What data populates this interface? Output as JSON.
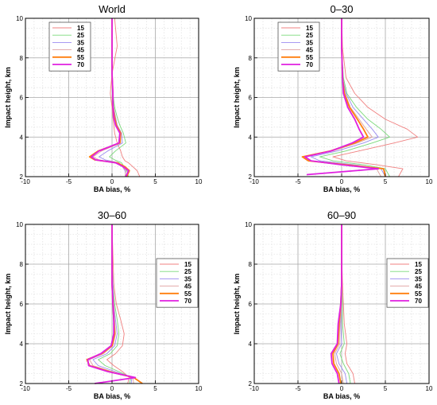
{
  "chart_data": [
    {
      "type": "line",
      "title": "World",
      "xlabel": "BA bias, %",
      "ylabel": "Impact height, km",
      "xlim": [
        -10,
        10
      ],
      "ylim": [
        2,
        10
      ],
      "xticks": [
        -10,
        -5,
        0,
        5,
        10
      ],
      "yticks": [
        2,
        4,
        6,
        8,
        10
      ],
      "grid": true,
      "legend_position": "top-left",
      "series": [
        {
          "name": "15",
          "color": "#f08080",
          "x": [
            3.2,
            2.9,
            2.4,
            1.9,
            1.5,
            1.2,
            1.0,
            0.6,
            0.3,
            0.2,
            0.1,
            0.0,
            -0.2,
            0.0,
            0.6,
            0.3
          ],
          "y": [
            2.0,
            2.3,
            2.5,
            2.7,
            2.8,
            3.0,
            3.3,
            3.7,
            4.2,
            4.6,
            5.0,
            5.5,
            6.2,
            7.2,
            8.6,
            10.0
          ]
        },
        {
          "name": "25",
          "color": "#7ad97a",
          "x": [
            1.9,
            1.7,
            1.4,
            1.1,
            0.3,
            -0.3,
            0.4,
            1.6,
            1.3,
            0.9,
            0.6,
            0.3,
            0.1,
            0.0,
            0.0,
            0.0
          ],
          "y": [
            2.0,
            2.3,
            2.5,
            2.7,
            2.85,
            3.0,
            3.3,
            3.7,
            4.2,
            4.6,
            5.0,
            5.5,
            6.2,
            7.2,
            8.6,
            10.0
          ]
        },
        {
          "name": "35",
          "color": "#9b8cf0",
          "x": [
            1.6,
            1.5,
            1.2,
            0.8,
            -0.8,
            -1.5,
            -0.5,
            1.2,
            1.1,
            0.6,
            0.4,
            0.2,
            0.1,
            0.0,
            0.0,
            0.0
          ],
          "y": [
            2.0,
            2.3,
            2.5,
            2.7,
            2.85,
            3.0,
            3.3,
            3.7,
            4.2,
            4.6,
            5.0,
            5.5,
            6.2,
            7.2,
            8.6,
            10.0
          ]
        },
        {
          "name": "45",
          "color": "#e0a0a0",
          "x": [
            1.5,
            1.6,
            1.2,
            0.7,
            -1.5,
            -2.2,
            -1.2,
            1.0,
            1.0,
            0.5,
            0.3,
            0.2,
            0.1,
            0.0,
            0.0,
            0.0
          ],
          "y": [
            2.0,
            2.3,
            2.5,
            2.7,
            2.85,
            3.0,
            3.3,
            3.7,
            4.2,
            4.6,
            5.0,
            5.5,
            6.2,
            7.2,
            8.6,
            10.0
          ]
        },
        {
          "name": "55",
          "color": "#ff7f0e",
          "x": [
            1.7,
            2.0,
            1.5,
            0.6,
            -2.0,
            -2.6,
            -1.6,
            0.9,
            1.0,
            0.5,
            0.3,
            0.1,
            0.1,
            0.0,
            0.0,
            0.0
          ],
          "y": [
            2.0,
            2.3,
            2.5,
            2.7,
            2.85,
            3.0,
            3.3,
            3.7,
            4.2,
            4.6,
            5.0,
            5.5,
            6.2,
            7.2,
            8.6,
            10.0
          ]
        },
        {
          "name": "70",
          "color": "#e020e0",
          "x": [
            1.6,
            1.9,
            1.3,
            0.4,
            -1.9,
            -2.4,
            -1.5,
            0.8,
            0.9,
            0.4,
            0.2,
            0.1,
            0.1,
            0.0,
            0.0,
            0.0
          ],
          "y": [
            2.0,
            2.3,
            2.5,
            2.7,
            2.85,
            3.0,
            3.3,
            3.7,
            4.2,
            4.6,
            5.0,
            5.5,
            6.2,
            7.2,
            8.6,
            10.0
          ]
        }
      ]
    },
    {
      "type": "line",
      "title": "0–30",
      "xlabel": "BA bias, %",
      "ylabel": "Impact height, km",
      "xlim": [
        -10,
        10
      ],
      "ylim": [
        2,
        10
      ],
      "xticks": [
        -10,
        -5,
        0,
        5,
        10
      ],
      "yticks": [
        2,
        4,
        6,
        8,
        10
      ],
      "grid": true,
      "legend_position": "top-left",
      "series": [
        {
          "name": "15",
          "color": "#f08080",
          "x": [
            6.5,
            7.0,
            4.0,
            0.5,
            -1.0,
            2.0,
            6.0,
            8.7,
            7.5,
            5.0,
            3.0,
            1.5,
            0.5,
            0.1,
            0.0
          ],
          "y": [
            2.0,
            2.4,
            2.6,
            2.8,
            3.0,
            3.3,
            3.7,
            4.0,
            4.4,
            4.9,
            5.5,
            6.2,
            7.0,
            8.5,
            10.0
          ]
        },
        {
          "name": "25",
          "color": "#7ad97a",
          "x": [
            5.5,
            5.0,
            2.5,
            -1.0,
            -2.5,
            0.5,
            3.5,
            5.5,
            4.5,
            3.0,
            1.7,
            0.6,
            0.2,
            0.0,
            0.0
          ],
          "y": [
            2.0,
            2.4,
            2.6,
            2.8,
            3.0,
            3.3,
            3.7,
            4.0,
            4.4,
            4.9,
            5.5,
            6.2,
            7.0,
            8.5,
            10.0
          ]
        },
        {
          "name": "35",
          "color": "#9b8cf0",
          "x": [
            5.0,
            4.5,
            1.5,
            -2.5,
            -3.5,
            -0.5,
            2.5,
            4.2,
            3.5,
            2.5,
            1.3,
            0.5,
            0.1,
            0.0,
            0.0
          ],
          "y": [
            2.0,
            2.4,
            2.6,
            2.8,
            3.0,
            3.3,
            3.7,
            4.0,
            4.4,
            4.9,
            5.5,
            6.2,
            7.0,
            8.5,
            10.0
          ]
        },
        {
          "name": "45",
          "color": "#e0a0a0",
          "x": [
            4.5,
            4.0,
            1.0,
            -3.5,
            -4.3,
            -1.0,
            1.8,
            3.5,
            2.8,
            2.0,
            1.0,
            0.4,
            0.1,
            0.0,
            0.0
          ],
          "y": [
            2.0,
            2.4,
            2.6,
            2.8,
            3.0,
            3.3,
            3.7,
            4.0,
            4.4,
            4.9,
            5.5,
            6.2,
            7.0,
            8.5,
            10.0
          ]
        },
        {
          "name": "55",
          "color": "#ff7f0e",
          "x": [
            5.0,
            4.8,
            0.5,
            -3.8,
            -4.5,
            -1.3,
            1.5,
            3.0,
            2.5,
            1.8,
            0.9,
            0.3,
            0.1,
            0.0,
            0.0
          ],
          "y": [
            2.0,
            2.4,
            2.6,
            2.8,
            3.0,
            3.3,
            3.7,
            4.0,
            4.4,
            4.9,
            5.5,
            6.2,
            7.0,
            8.5,
            10.0
          ]
        },
        {
          "name": "70",
          "color": "#e020e0",
          "x": [
            -4.0,
            4.2,
            0.0,
            -3.5,
            -4.2,
            -1.2,
            1.2,
            2.5,
            2.0,
            1.5,
            0.7,
            0.2,
            0.1,
            0.0,
            0.0
          ],
          "y": [
            2.1,
            2.4,
            2.6,
            2.8,
            3.0,
            3.3,
            3.7,
            4.0,
            4.4,
            4.9,
            5.5,
            6.2,
            7.0,
            8.5,
            10.0
          ]
        }
      ]
    },
    {
      "type": "line",
      "title": "30–60",
      "xlabel": "BA bias, %",
      "ylabel": "Impact height, km",
      "xlim": [
        -10,
        10
      ],
      "ylim": [
        2,
        10
      ],
      "xticks": [
        -10,
        -5,
        0,
        5,
        10
      ],
      "yticks": [
        2,
        4,
        6,
        8,
        10
      ],
      "grid": true,
      "legend_position": "right",
      "series": [
        {
          "name": "15",
          "color": "#f08080",
          "x": [
            1.8,
            2.0,
            1.2,
            0.2,
            -0.6,
            0.4,
            1.2,
            1.4,
            1.0,
            0.5,
            0.2,
            0.1,
            0.0
          ],
          "y": [
            2.0,
            2.3,
            2.6,
            2.9,
            3.2,
            3.5,
            3.9,
            4.5,
            5.2,
            6.0,
            7.0,
            8.5,
            10.0
          ]
        },
        {
          "name": "25",
          "color": "#7ad97a",
          "x": [
            2.0,
            2.2,
            0.8,
            -0.8,
            -1.6,
            -0.2,
            0.6,
            0.8,
            0.6,
            0.3,
            0.1,
            0.0,
            0.0
          ],
          "y": [
            2.0,
            2.3,
            2.6,
            2.9,
            3.2,
            3.5,
            3.9,
            4.5,
            5.2,
            6.0,
            7.0,
            8.5,
            10.0
          ]
        },
        {
          "name": "35",
          "color": "#9b8cf0",
          "x": [
            2.2,
            2.3,
            0.4,
            -1.6,
            -2.2,
            -0.6,
            0.3,
            0.6,
            0.4,
            0.2,
            0.1,
            0.0,
            0.0
          ],
          "y": [
            2.0,
            2.3,
            2.6,
            2.9,
            3.2,
            3.5,
            3.9,
            4.5,
            5.2,
            6.0,
            7.0,
            8.5,
            10.0
          ]
        },
        {
          "name": "45",
          "color": "#e0a0a0",
          "x": [
            2.5,
            2.4,
            0.0,
            -2.2,
            -2.6,
            -1.0,
            0.1,
            0.4,
            0.3,
            0.2,
            0.0,
            0.0,
            0.0
          ],
          "y": [
            2.0,
            2.3,
            2.6,
            2.9,
            3.2,
            3.5,
            3.9,
            4.5,
            5.2,
            6.0,
            7.0,
            8.5,
            10.0
          ]
        },
        {
          "name": "55",
          "color": "#ff7f0e",
          "x": [
            3.5,
            2.5,
            -0.3,
            -2.6,
            -2.9,
            -1.2,
            0.0,
            0.3,
            0.2,
            0.1,
            0.0,
            0.0,
            0.0
          ],
          "y": [
            2.0,
            2.3,
            2.6,
            2.9,
            3.2,
            3.5,
            3.9,
            4.5,
            5.2,
            6.0,
            7.0,
            8.5,
            10.0
          ]
        },
        {
          "name": "70",
          "color": "#e020e0",
          "x": [
            -2.0,
            2.7,
            -0.5,
            -2.7,
            -2.8,
            -1.3,
            -0.1,
            0.2,
            0.2,
            0.1,
            0.0,
            0.0,
            0.0
          ],
          "y": [
            2.0,
            2.3,
            2.6,
            2.9,
            3.2,
            3.5,
            3.9,
            4.5,
            5.2,
            6.0,
            7.0,
            8.5,
            10.0
          ]
        }
      ]
    },
    {
      "type": "line",
      "title": "60–90",
      "xlabel": "BA bias, %",
      "ylabel": "Impact height, km",
      "xlim": [
        -10,
        10
      ],
      "ylim": [
        2,
        10
      ],
      "xticks": [
        -10,
        -5,
        0,
        5,
        10
      ],
      "yticks": [
        2,
        4,
        6,
        8,
        10
      ],
      "grid": true,
      "legend_position": "right",
      "series": [
        {
          "name": "15",
          "color": "#f08080",
          "x": [
            1.5,
            1.3,
            0.6,
            0.4,
            0.6,
            0.3,
            0.2,
            0.1,
            0.0,
            0.0
          ],
          "y": [
            2.0,
            2.5,
            3.0,
            3.5,
            4.0,
            5.0,
            6.0,
            7.0,
            8.5,
            10.0
          ]
        },
        {
          "name": "25",
          "color": "#7ad97a",
          "x": [
            1.0,
            0.8,
            0.2,
            -0.2,
            0.3,
            0.1,
            0.1,
            0.0,
            0.0,
            0.0
          ],
          "y": [
            2.0,
            2.5,
            3.0,
            3.5,
            4.0,
            5.0,
            6.0,
            7.0,
            8.5,
            10.0
          ]
        },
        {
          "name": "35",
          "color": "#9b8cf0",
          "x": [
            0.6,
            0.4,
            -0.3,
            -0.6,
            0.0,
            -0.1,
            0.0,
            0.0,
            0.0,
            0.0
          ],
          "y": [
            2.0,
            2.5,
            3.0,
            3.5,
            4.0,
            5.0,
            6.0,
            7.0,
            8.5,
            10.0
          ]
        },
        {
          "name": "45",
          "color": "#e0a0a0",
          "x": [
            0.2,
            0.0,
            -0.6,
            -0.8,
            -0.2,
            -0.2,
            0.0,
            0.0,
            0.0,
            0.0
          ],
          "y": [
            2.0,
            2.5,
            3.0,
            3.5,
            4.0,
            5.0,
            6.0,
            7.0,
            8.5,
            10.0
          ]
        },
        {
          "name": "55",
          "color": "#ff7f0e",
          "x": [
            -0.1,
            -0.3,
            -0.9,
            -1.0,
            -0.4,
            -0.3,
            -0.1,
            0.0,
            0.0,
            0.0
          ],
          "y": [
            2.0,
            2.5,
            3.0,
            3.5,
            4.0,
            5.0,
            6.0,
            7.0,
            8.5,
            10.0
          ]
        },
        {
          "name": "70",
          "color": "#e020e0",
          "x": [
            -0.3,
            -0.5,
            -1.1,
            -1.2,
            -0.5,
            -0.4,
            -0.1,
            0.0,
            0.0,
            0.0
          ],
          "y": [
            2.0,
            2.5,
            3.0,
            3.5,
            4.0,
            5.0,
            6.0,
            7.0,
            8.5,
            10.0
          ]
        }
      ]
    }
  ]
}
